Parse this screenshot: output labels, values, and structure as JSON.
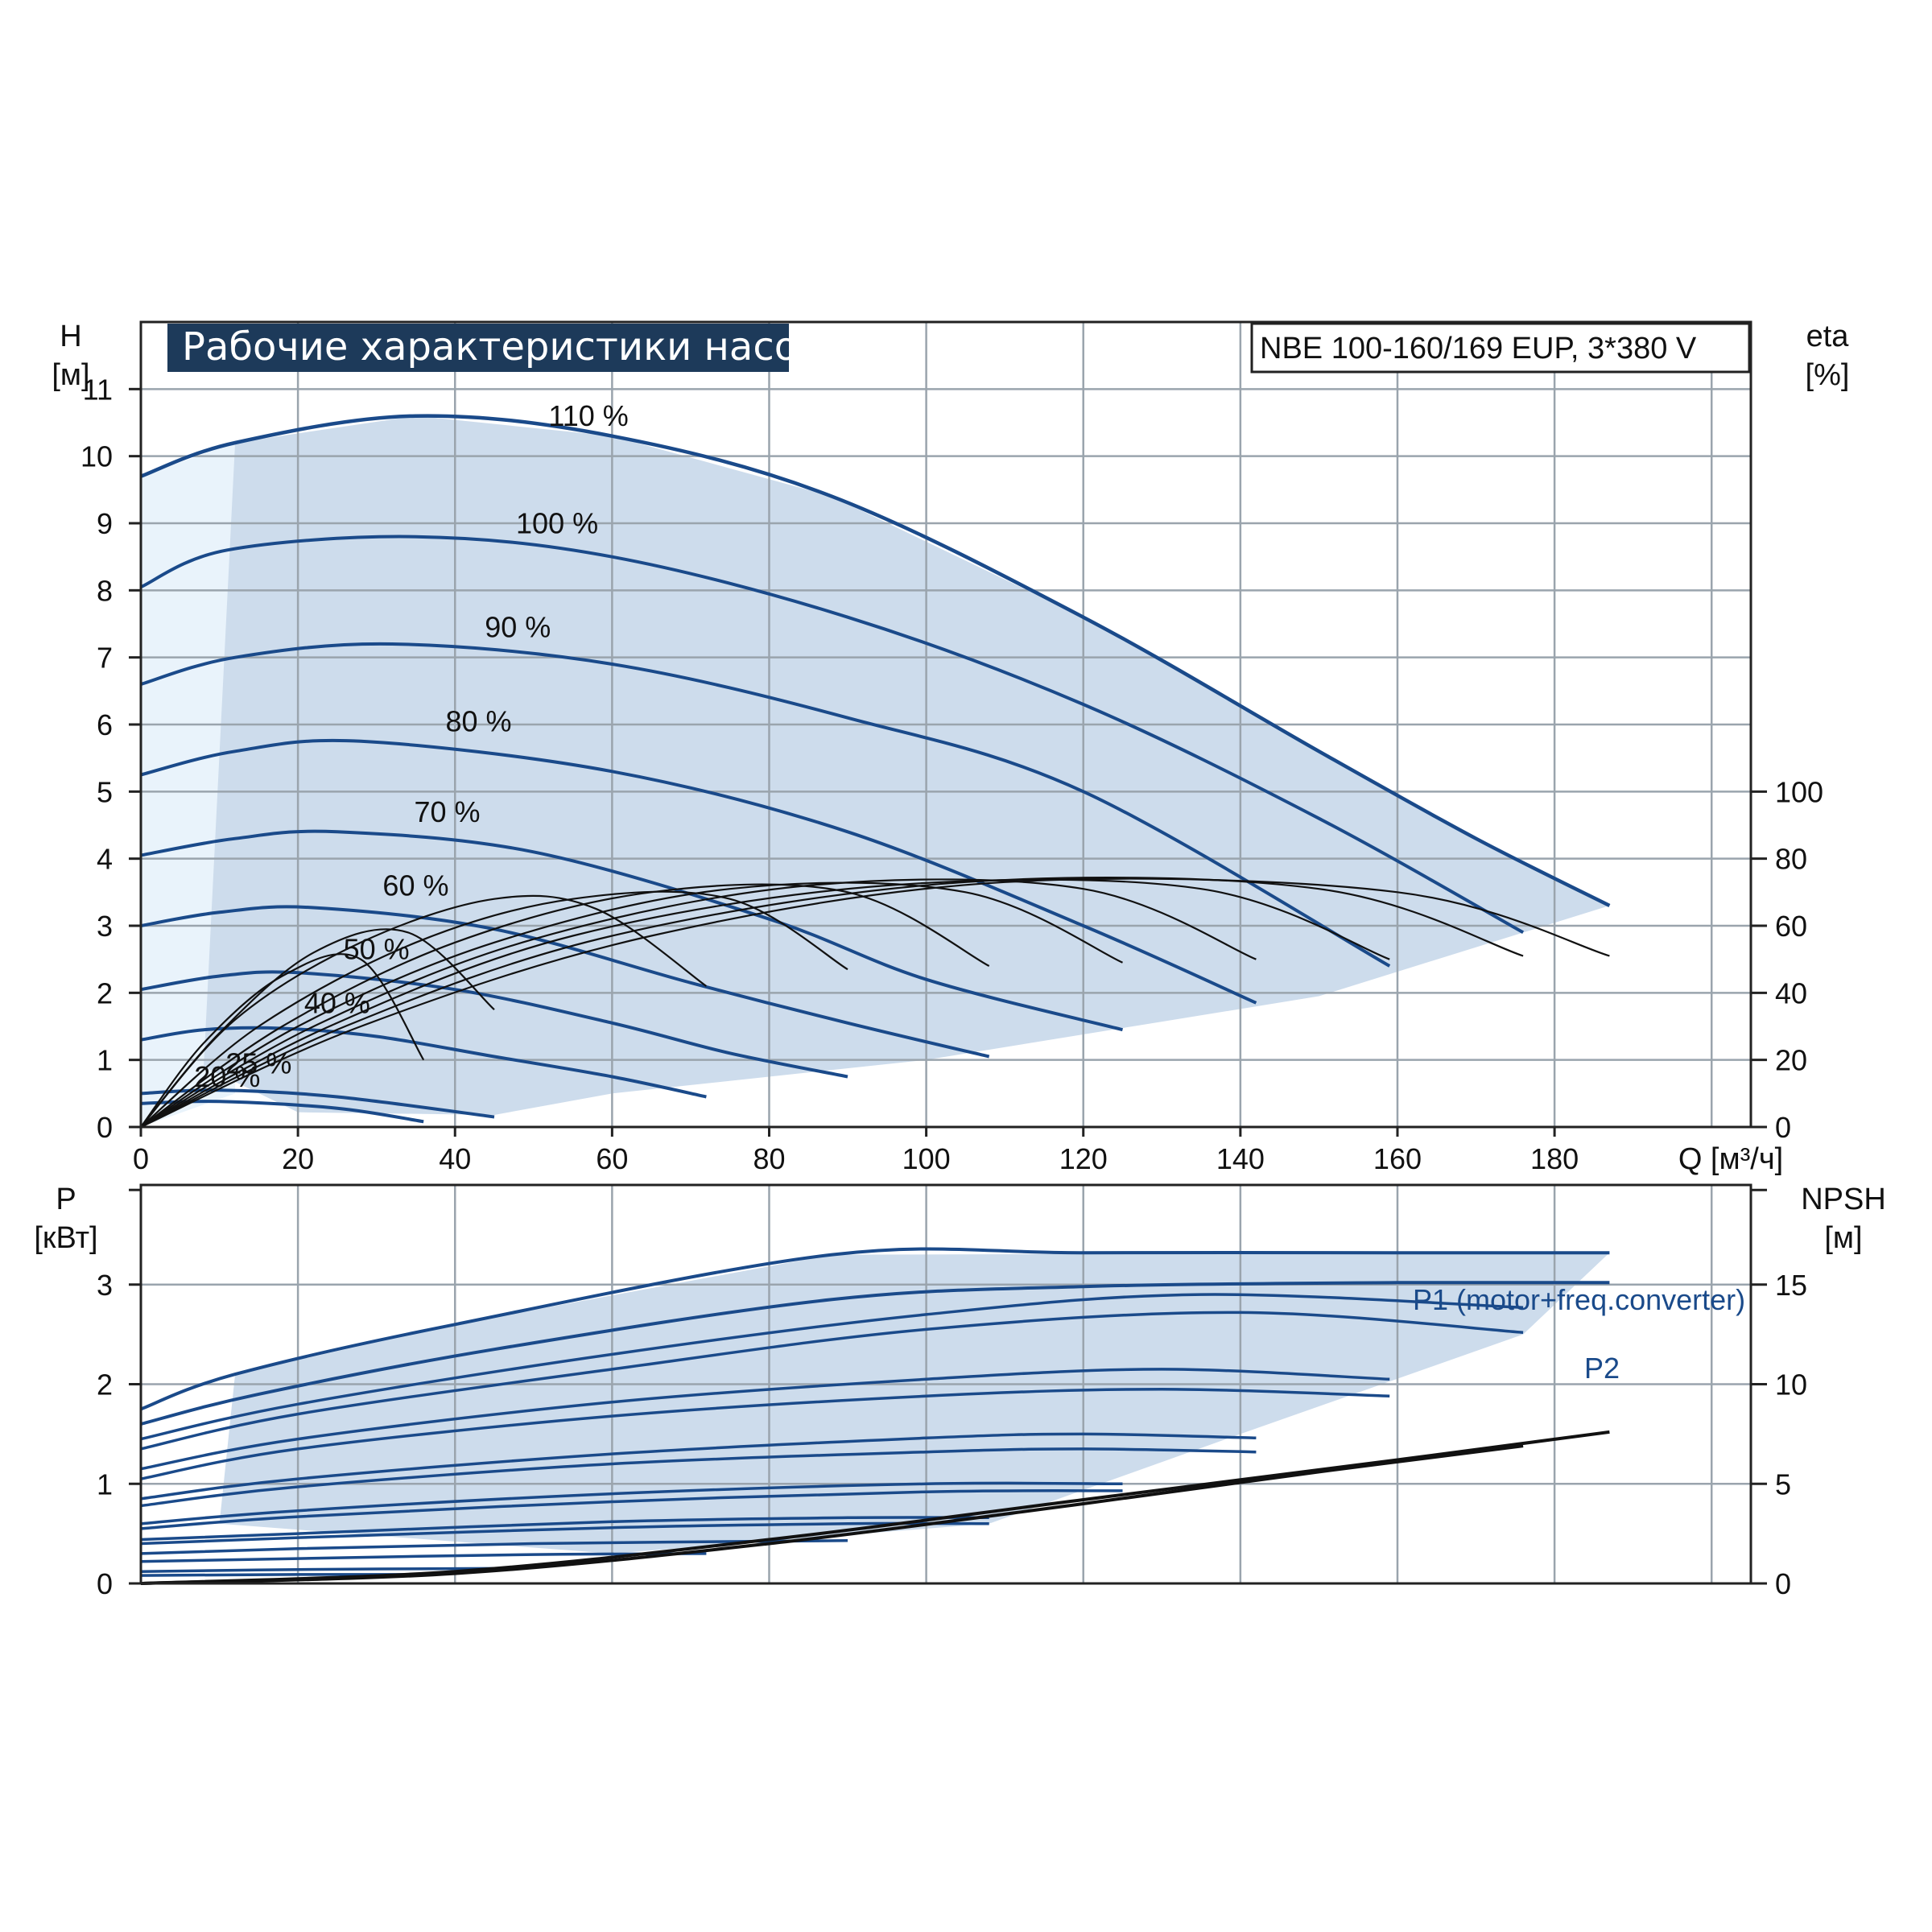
{
  "colors": {
    "curve": "#1a4a8a",
    "band": "#cddcec",
    "band_light": "#e9f3fb",
    "eta": "#111111",
    "npsh": "#111111"
  },
  "chart_data": [
    {
      "type": "line",
      "title": "Рабочие характеристики насоса",
      "subtitle": "NBE 100-160/169 EUP, 3*380 V",
      "xlabel": "Q [м³/ч]",
      "ylabel": [
        "H",
        "[м]"
      ],
      "y2label": [
        "eta",
        "[%]"
      ],
      "xlim": [
        0,
        205
      ],
      "ylim": [
        0,
        12
      ],
      "y2lim": [
        0,
        100
      ],
      "x_ticks": [
        0,
        20,
        40,
        60,
        80,
        100,
        120,
        140,
        160,
        180
      ],
      "y_ticks": [
        0,
        1,
        2,
        3,
        4,
        5,
        6,
        7,
        8,
        9,
        10,
        11
      ],
      "y2_ticks": [
        0,
        20,
        40,
        60,
        80,
        100
      ],
      "grid": true,
      "series_labels": [
        {
          "text": "110 %",
          "x": 57,
          "y": 10.45
        },
        {
          "text": "100 %",
          "x": 53,
          "y": 8.85
        },
        {
          "text": "90 %",
          "x": 48,
          "y": 7.3
        },
        {
          "text": "80 %",
          "x": 43,
          "y": 5.9
        },
        {
          "text": "70 %",
          "x": 39,
          "y": 4.55
        },
        {
          "text": "60 %",
          "x": 35,
          "y": 3.45
        },
        {
          "text": "50 %",
          "x": 30,
          "y": 2.5
        },
        {
          "text": "40 %",
          "x": 25,
          "y": 1.7
        },
        {
          "text": "25 %",
          "x": 15,
          "y": 0.8
        },
        {
          "text": "20 %",
          "x": 11,
          "y": 0.6
        }
      ],
      "series": [
        {
          "speed": 1.1,
          "x": [
            0,
            12,
            35,
            60,
            88,
            120,
            150,
            170,
            187
          ],
          "y": [
            9.7,
            10.2,
            10.6,
            10.3,
            9.4,
            7.6,
            5.6,
            4.3,
            3.3
          ]
        },
        {
          "speed": 1.0,
          "x": [
            0,
            11,
            35,
            60,
            90,
            120,
            150,
            176
          ],
          "y": [
            8.05,
            8.6,
            8.8,
            8.5,
            7.6,
            6.3,
            4.6,
            2.9
          ]
        },
        {
          "speed": 0.9,
          "x": [
            0,
            12,
            32,
            60,
            90,
            120,
            159
          ],
          "y": [
            6.6,
            7.0,
            7.2,
            6.9,
            6.1,
            5.0,
            2.4
          ]
        },
        {
          "speed": 0.8,
          "x": [
            0,
            12,
            28,
            60,
            90,
            120,
            142
          ],
          "y": [
            5.25,
            5.6,
            5.75,
            5.3,
            4.4,
            3.0,
            1.85
          ]
        },
        {
          "speed": 0.7,
          "x": [
            0,
            12,
            25,
            50,
            80,
            100,
            125
          ],
          "y": [
            4.05,
            4.3,
            4.4,
            4.1,
            3.1,
            2.2,
            1.45
          ]
        },
        {
          "speed": 0.6,
          "x": [
            0,
            10,
            22,
            45,
            70,
            90,
            108
          ],
          "y": [
            3.0,
            3.2,
            3.27,
            2.95,
            2.15,
            1.55,
            1.05
          ]
        },
        {
          "speed": 0.5,
          "x": [
            0,
            10,
            20,
            40,
            60,
            75,
            90
          ],
          "y": [
            2.05,
            2.25,
            2.3,
            2.05,
            1.55,
            1.1,
            0.75
          ]
        },
        {
          "speed": 0.4,
          "x": [
            0,
            8,
            18,
            30,
            45,
            60,
            72
          ],
          "y": [
            1.3,
            1.45,
            1.47,
            1.35,
            1.05,
            0.75,
            0.45
          ]
        },
        {
          "speed": 0.25,
          "x": [
            0,
            10,
            25,
            45
          ],
          "y": [
            0.5,
            0.55,
            0.45,
            0.15
          ]
        },
        {
          "speed": 0.2,
          "x": [
            0,
            10,
            25,
            36
          ],
          "y": [
            0.35,
            0.38,
            0.28,
            0.08
          ]
        }
      ],
      "eta_curves": [
        {
          "x": [
            0,
            8,
            18,
            28,
            36
          ],
          "y": [
            0,
            25,
            45,
            50,
            20
          ]
        },
        {
          "x": [
            0,
            10,
            22,
            34,
            45
          ],
          "y": [
            0,
            28,
            52,
            58,
            35
          ]
        },
        {
          "x": [
            0,
            12,
            28,
            45,
            58,
            72
          ],
          "y": [
            0,
            32,
            55,
            68,
            65,
            42
          ]
        },
        {
          "x": [
            0,
            15,
            35,
            55,
            75,
            90
          ],
          "y": [
            0,
            30,
            55,
            68,
            68,
            47
          ]
        },
        {
          "x": [
            0,
            18,
            40,
            65,
            90,
            108
          ],
          "y": [
            0,
            30,
            55,
            70,
            70,
            48
          ]
        },
        {
          "x": [
            0,
            20,
            45,
            75,
            105,
            125
          ],
          "y": [
            0,
            30,
            55,
            71,
            70,
            49
          ]
        },
        {
          "x": [
            0,
            22,
            50,
            85,
            120,
            142
          ],
          "y": [
            0,
            30,
            56,
            72,
            71,
            50
          ]
        },
        {
          "x": [
            0,
            24,
            55,
            95,
            135,
            159
          ],
          "y": [
            0,
            30,
            57,
            72,
            71,
            50
          ]
        },
        {
          "x": [
            0,
            26,
            60,
            105,
            150,
            176
          ],
          "y": [
            0,
            30,
            57,
            73,
            71,
            51
          ]
        },
        {
          "x": [
            0,
            28,
            65,
            110,
            160,
            187
          ],
          "y": [
            0,
            30,
            57,
            73,
            70,
            51
          ]
        }
      ]
    },
    {
      "type": "line",
      "ylabel": [
        "P",
        "[кВт]"
      ],
      "y2label": [
        "NPSH",
        "[м]"
      ],
      "xlim": [
        0,
        205
      ],
      "ylim": [
        0,
        4
      ],
      "y2lim": [
        0,
        20
      ],
      "y_ticks": [
        0,
        1,
        2,
        3
      ],
      "y2_ticks": [
        0,
        5,
        10,
        15
      ],
      "grid": true,
      "legend": [
        "P1 (motor+freq.converter)",
        "P2"
      ],
      "series": [
        {
          "name": "P1 (motor+freq.converter)",
          "x": [
            0,
            12,
            40,
            88,
            120,
            160,
            187
          ],
          "y": [
            1.75,
            2.1,
            2.6,
            3.3,
            3.32,
            3.32,
            3.32
          ]
        },
        {
          "name": "P2",
          "x": [
            0,
            15,
            45,
            88,
            120,
            160,
            187
          ],
          "y": [
            1.6,
            1.9,
            2.35,
            2.85,
            2.98,
            3.02,
            3.02
          ]
        },
        {
          "x": [
            0,
            20,
            60,
            100,
            135,
            176
          ],
          "y": [
            1.45,
            1.8,
            2.3,
            2.7,
            2.9,
            2.77
          ]
        },
        {
          "x": [
            0,
            20,
            60,
            100,
            140,
            176
          ],
          "y": [
            1.35,
            1.7,
            2.15,
            2.55,
            2.72,
            2.52
          ]
        },
        {
          "x": [
            0,
            20,
            60,
            100,
            130,
            159
          ],
          "y": [
            1.15,
            1.45,
            1.82,
            2.05,
            2.15,
            2.05
          ]
        },
        {
          "x": [
            0,
            20,
            60,
            100,
            130,
            159
          ],
          "y": [
            1.05,
            1.35,
            1.68,
            1.88,
            1.95,
            1.88
          ]
        },
        {
          "x": [
            0,
            20,
            60,
            100,
            120,
            142
          ],
          "y": [
            0.85,
            1.05,
            1.3,
            1.46,
            1.5,
            1.46
          ]
        },
        {
          "x": [
            0,
            20,
            60,
            100,
            120,
            142
          ],
          "y": [
            0.78,
            0.97,
            1.2,
            1.32,
            1.35,
            1.32
          ]
        },
        {
          "x": [
            0,
            20,
            60,
            100,
            125
          ],
          "y": [
            0.6,
            0.73,
            0.9,
            1.0,
            1.0
          ]
        },
        {
          "x": [
            0,
            20,
            60,
            100,
            125
          ],
          "y": [
            0.55,
            0.67,
            0.82,
            0.92,
            0.93
          ]
        },
        {
          "x": [
            0,
            20,
            60,
            90,
            108
          ],
          "y": [
            0.44,
            0.5,
            0.62,
            0.66,
            0.66
          ]
        },
        {
          "x": [
            0,
            20,
            60,
            90,
            108
          ],
          "y": [
            0.4,
            0.46,
            0.56,
            0.6,
            0.6
          ]
        },
        {
          "x": [
            0,
            20,
            50,
            90
          ],
          "y": [
            0.3,
            0.35,
            0.4,
            0.43
          ]
        },
        {
          "x": [
            0,
            20,
            50,
            72
          ],
          "y": [
            0.22,
            0.25,
            0.29,
            0.3
          ]
        },
        {
          "x": [
            0,
            20,
            45
          ],
          "y": [
            0.12,
            0.14,
            0.15
          ]
        },
        {
          "x": [
            0,
            20,
            36
          ],
          "y": [
            0.08,
            0.09,
            0.09
          ]
        }
      ],
      "npsh_curves": [
        {
          "x": [
            0,
            40,
            80,
            120,
            160,
            187
          ],
          "y": [
            0,
            0.6,
            2.2,
            4.2,
            6.2,
            7.6
          ]
        },
        {
          "x": [
            0,
            40,
            80,
            120,
            150,
            176
          ],
          "y": [
            0,
            0.5,
            2.0,
            4.0,
            5.6,
            6.9
          ]
        }
      ]
    }
  ]
}
